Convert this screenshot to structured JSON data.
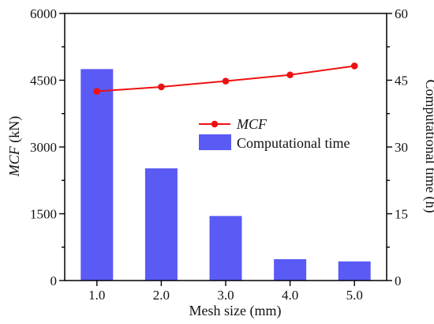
{
  "chart_data": {
    "type": "bar",
    "categories": [
      "1.0",
      "2.0",
      "3.0",
      "4.0",
      "5.0"
    ],
    "series": [
      {
        "name": "Computational time",
        "type": "bar",
        "axis": "right",
        "values": [
          47.5,
          25.2,
          14.5,
          4.8,
          4.3
        ]
      },
      {
        "name": "MCF",
        "type": "line",
        "axis": "left",
        "values": [
          4250,
          4350,
          4480,
          4620,
          4820
        ]
      }
    ],
    "title": "",
    "xlabel": "Mesh size (mm)",
    "ylabel": {
      "italic": "MCF",
      "unit": " (kN)"
    },
    "y2label": "Computational time (h)",
    "ylim": [
      0,
      6000
    ],
    "y2lim": [
      0,
      60
    ],
    "yticks": [
      "0",
      "1500",
      "3000",
      "4500",
      "6000"
    ],
    "y2ticks": [
      "0",
      "15",
      "30",
      "45",
      "60"
    ],
    "grid": false,
    "legend_position": "center-right",
    "colors": {
      "bar": "#5a5af5",
      "line": "#ee1111",
      "axis": "#000000"
    }
  }
}
